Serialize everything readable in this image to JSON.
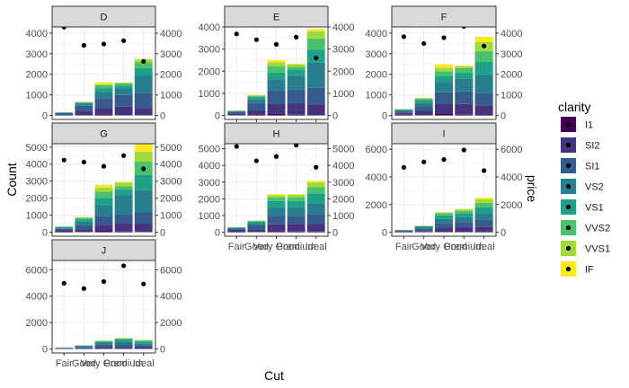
{
  "chart_data": {
    "type": "bar",
    "description_type": "faceted stacked bar with point overlay on secondary axis",
    "x_label": "Cut",
    "y_label": "Count",
    "y2_label": "price",
    "categories": [
      "Fair",
      "Good",
      "Very Good",
      "Premium",
      "Ideal"
    ],
    "legend": {
      "title": "clarity",
      "entries": [
        "I1",
        "SI2",
        "SI1",
        "VS2",
        "VS1",
        "VVS2",
        "VVS1",
        "IF"
      ],
      "colors": [
        "#440154",
        "#46337E",
        "#365C8D",
        "#277F8E",
        "#1FA187",
        "#4AC16D",
        "#9FDA3A",
        "#FDE725"
      ]
    },
    "point_color": "#000000",
    "facets": [
      {
        "label": "D",
        "ylim": [
          0,
          4300
        ],
        "yticks": [
          0,
          1000,
          2000,
          3000,
          4000
        ],
        "y2ticks": [
          0,
          1000,
          2000,
          3000,
          4000
        ],
        "show_x_labels": false,
        "stacks": [
          [
            4,
            56,
            58,
            25,
            5,
            9,
            3,
            3
          ],
          [
            8,
            223,
            237,
            104,
            43,
            25,
            13,
            9
          ],
          [
            42,
            309,
            494,
            309,
            175,
            141,
            52,
            91
          ],
          [
            12,
            421,
            556,
            339,
            131,
            94,
            40,
            10
          ],
          [
            13,
            356,
            738,
            836,
            351,
            284,
            144,
            28
          ]
        ],
        "price": [
          4291,
          3405,
          3470,
          3631,
          2629
        ]
      },
      {
        "label": "E",
        "ylim": [
          0,
          4000
        ],
        "yticks": [
          0,
          1000,
          2000,
          3000,
          4000
        ],
        "y2ticks": [
          0,
          1000,
          2000,
          3000,
          4000
        ],
        "show_x_labels": true,
        "stacks": [
          [
            9,
            78,
            65,
            42,
            14,
            13,
            3,
            0
          ],
          [
            23,
            202,
            355,
            160,
            89,
            52,
            43,
            9
          ],
          [
            65,
            445,
            626,
            503,
            293,
            298,
            170,
            100
          ],
          [
            30,
            519,
            614,
            629,
            292,
            121,
            105,
            27
          ],
          [
            18,
            469,
            766,
            1136,
            575,
            507,
            335,
            97
          ]
        ],
        "price": [
          3682,
          3424,
          3214,
          3539,
          2598
        ]
      },
      {
        "label": "F",
        "ylim": [
          0,
          4300
        ],
        "yticks": [
          0,
          1000,
          2000,
          3000,
          4000
        ],
        "y2ticks": [
          0,
          1000,
          2000,
          3000,
          4000
        ],
        "show_x_labels": false,
        "stacks": [
          [
            35,
            89,
            83,
            53,
            33,
            10,
            5,
            4
          ],
          [
            19,
            201,
            222,
            184,
            132,
            50,
            35,
            15
          ],
          [
            99,
            469,
            559,
            508,
            293,
            216,
            174,
            164
          ],
          [
            34,
            523,
            608,
            619,
            290,
            230,
            80,
            47
          ],
          [
            42,
            453,
            608,
            879,
            616,
            520,
            440,
            268
          ]
        ],
        "price": [
          3827,
          3496,
          3779,
          4325,
          3375
        ]
      },
      {
        "label": "G",
        "ylim": [
          0,
          5200
        ],
        "yticks": [
          0,
          1000,
          2000,
          3000,
          4000,
          5000
        ],
        "y2ticks": [
          0,
          1000,
          2000,
          3000,
          4000,
          5000
        ],
        "show_x_labels": false,
        "stacks": [
          [
            53,
            80,
            69,
            45,
            69,
            17,
            3,
            0
          ],
          [
            19,
            163,
            238,
            192,
            152,
            75,
            41,
            14
          ],
          [
            80,
            349,
            500,
            661,
            426,
            360,
            247,
            167
          ],
          [
            46,
            492,
            494,
            1155,
            320,
            186,
            212,
            49
          ],
          [
            16,
            486,
            660,
            1315,
            894,
            774,
            594,
            491
          ]
        ],
        "price": [
          4239,
          4123,
          3873,
          4501,
          3721
        ]
      },
      {
        "label": "H",
        "ylim": [
          0,
          5300
        ],
        "yticks": [
          0,
          1000,
          2000,
          3000,
          4000,
          5000
        ],
        "y2ticks": [
          0,
          1000,
          2000,
          3000,
          4000,
          5000
        ],
        "show_x_labels": true,
        "stacks": [
          [
            52,
            91,
            75,
            41,
            32,
            11,
            1,
            0
          ],
          [
            14,
            158,
            235,
            138,
            77,
            45,
            31,
            4
          ],
          [
            70,
            404,
            497,
            524,
            371,
            207,
            142,
            65
          ],
          [
            46,
            459,
            473,
            521,
            359,
            235,
            153,
            40
          ],
          [
            38,
            450,
            598,
            656,
            582,
            369,
            290,
            101
          ]
        ],
        "price": [
          5136,
          4276,
          4535,
          5217,
          3889
        ]
      },
      {
        "label": "I",
        "ylim": [
          0,
          6400
        ],
        "yticks": [
          0,
          2000,
          4000,
          6000
        ],
        "y2ticks": [
          0,
          2000,
          4000,
          6000
        ],
        "show_x_labels": true,
        "stacks": [
          [
            34,
            45,
            30,
            32,
            24,
            8,
            1,
            2
          ],
          [
            9,
            81,
            165,
            110,
            61,
            26,
            22,
            4
          ],
          [
            22,
            273,
            368,
            301,
            253,
            146,
            71,
            9
          ],
          [
            24,
            388,
            332,
            343,
            291,
            174,
            105,
            23
          ],
          [
            40,
            346,
            493,
            494,
            438,
            316,
            246,
            120
          ]
        ],
        "price": [
          4685,
          5079,
          5256,
          5946,
          4452
        ]
      },
      {
        "label": "J",
        "ylim": [
          0,
          6700
        ],
        "yticks": [
          0,
          2000,
          4000,
          6000
        ],
        "y2ticks": [
          0,
          2000,
          4000,
          6000
        ],
        "show_x_labels": true,
        "stacks": [
          [
            14,
            27,
            28,
            23,
            16,
            1,
            1,
            0
          ],
          [
            8,
            53,
            88,
            61,
            53,
            13,
            1,
            3
          ],
          [
            24,
            125,
            171,
            161,
            82,
            44,
            28,
            11
          ],
          [
            21,
            131,
            196,
            224,
            155,
            67,
            37,
            11
          ],
          [
            22,
            119,
            128,
            157,
            145,
            73,
            18,
            25
          ]
        ],
        "price": [
          4976,
          4574,
          5104,
          6295,
          4918
        ]
      }
    ]
  }
}
